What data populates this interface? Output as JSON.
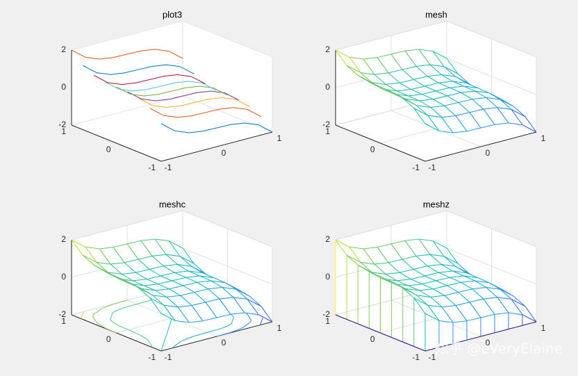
{
  "chart_data": {
    "type": "surface",
    "x": [
      -1,
      -0.75,
      -0.5,
      -0.25,
      0,
      0.25,
      0.5,
      0.75,
      1
    ],
    "y": [
      -1,
      -0.75,
      -0.5,
      -0.25,
      0,
      0.25,
      0.5,
      0.75,
      1
    ],
    "z": [
      [
        0,
        -0.58,
        -0.87,
        -0.98,
        -1,
        -1.02,
        -1.13,
        -1.42,
        -2
      ],
      [
        0.58,
        0,
        -0.29,
        -0.4,
        -0.42,
        -0.44,
        -0.55,
        -0.84,
        -1.42
      ],
      [
        0.87,
        0.29,
        0,
        -0.11,
        -0.13,
        -0.15,
        -0.26,
        -0.55,
        -1.13
      ],
      [
        0.98,
        0.4,
        0.11,
        0,
        -0.02,
        -0.04,
        -0.15,
        -0.44,
        -1.02
      ],
      [
        1,
        0.42,
        0.13,
        0.02,
        0,
        -0.02,
        -0.13,
        -0.42,
        -1
      ],
      [
        1.02,
        0.44,
        0.15,
        0.04,
        0.02,
        0,
        -0.11,
        -0.4,
        -0.98
      ],
      [
        1.13,
        0.55,
        0.26,
        0.15,
        0.13,
        0.11,
        0,
        -0.29,
        -0.87
      ],
      [
        1.42,
        0.84,
        0.55,
        0.44,
        0.42,
        0.4,
        0.29,
        0,
        -0.58
      ],
      [
        2,
        1.42,
        1.13,
        1.02,
        1,
        0.98,
        0.87,
        0.58,
        0
      ]
    ],
    "xlim": [
      -1,
      1
    ],
    "ylim": [
      -1,
      1
    ],
    "zlim": [
      -2,
      2
    ],
    "xticks": [
      -1,
      0,
      1
    ],
    "yticks": [
      -1,
      0,
      1
    ],
    "zticks": [
      -2,
      0,
      2
    ],
    "colormap": [
      "#3e26a8",
      "#2e87f7",
      "#17bbbb",
      "#83cb52",
      "#f9fb15"
    ],
    "line_colors": [
      "#0072bd",
      "#d95319",
      "#edb120",
      "#7e2f8e",
      "#77ac30",
      "#4dbeee",
      "#a2142f"
    ],
    "contour_levels": [
      -1.5,
      -1,
      -0.5,
      0,
      0.5,
      1,
      1.5
    ],
    "panels": [
      {
        "type": "plot3",
        "title": "plot3",
        "grid": false
      },
      {
        "type": "mesh",
        "title": "mesh",
        "grid": true
      },
      {
        "type": "meshc",
        "title": "meshc",
        "grid": true
      },
      {
        "type": "meshz",
        "title": "meshz",
        "grid": true
      }
    ]
  },
  "watermark": "知乎 @eVeryElaine"
}
